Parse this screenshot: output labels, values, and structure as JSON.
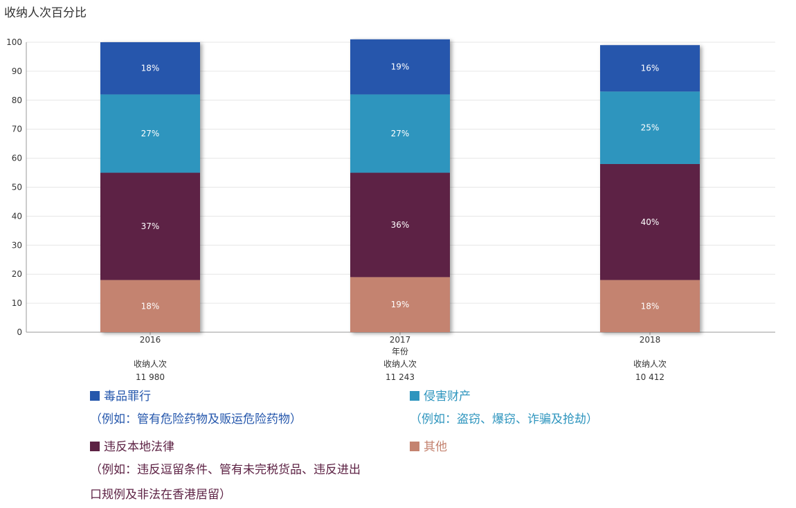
{
  "chart_data": {
    "type": "bar",
    "stacked": true,
    "title": "收纳人次百分比",
    "xlabel": "年份",
    "ylabel": "",
    "ylim": [
      0,
      100
    ],
    "yticks": [
      0,
      10,
      20,
      30,
      40,
      50,
      60,
      70,
      80,
      90,
      100
    ],
    "grid": true,
    "categories": [
      "2016",
      "2017",
      "2018"
    ],
    "category_sublabel": "收纳人次",
    "category_counts": [
      "11 980",
      "11 243",
      "10 412"
    ],
    "series": [
      {
        "name": "其他",
        "color": "#c48370",
        "values": [
          18,
          19,
          18
        ],
        "labels": [
          "18%",
          "19%",
          "18%"
        ]
      },
      {
        "name": "违反本地法律",
        "color": "#5d2244",
        "values": [
          37,
          36,
          40
        ],
        "labels": [
          "37%",
          "36%",
          "40%"
        ]
      },
      {
        "name": "侵害财产",
        "color": "#2e95be",
        "values": [
          27,
          27,
          25
        ],
        "labels": [
          "27%",
          "27%",
          "25%"
        ]
      },
      {
        "name": "毒品罪行",
        "color": "#2557ac",
        "values": [
          18,
          19,
          16
        ],
        "labels": [
          "18%",
          "19%",
          "16%"
        ]
      }
    ]
  },
  "legend": {
    "drug": {
      "name": "毒品罪行",
      "note": "（例如：管有危险药物及贩运危险药物）",
      "color": "#2557ac"
    },
    "property": {
      "name": "侵害财产",
      "note": "（例如：盗窃、爆窃、诈骗及抢劫）",
      "color": "#2e95be"
    },
    "law": {
      "name": "违反本地法律",
      "note_line1": "（例如：违反逗留条件、管有未完税货品、违反进出",
      "note_line2": "口规例及非法在香港居留）",
      "color": "#5d2244"
    },
    "other": {
      "name": "其他",
      "color": "#c48370"
    }
  }
}
